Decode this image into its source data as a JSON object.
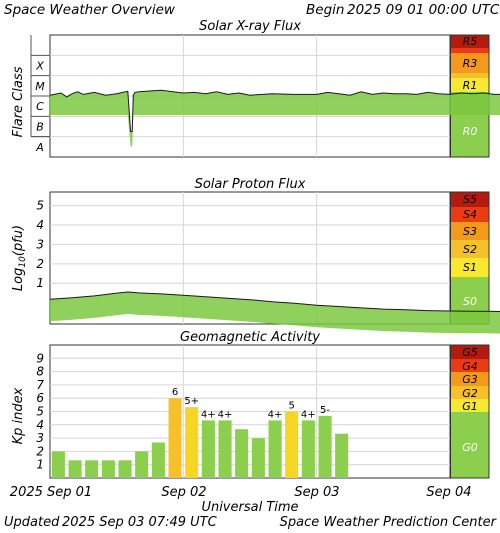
{
  "header": {
    "title": "Space Weather Overview",
    "begin_label": "Begin",
    "begin_time": "2025 09 01 00:00 UTC"
  },
  "footer": {
    "updated_label": "Updated",
    "updated_time": "2025 Sep 03 07:49 UTC",
    "credit": "Space Weather Prediction Center"
  },
  "colors": {
    "trace_fill": "#7cc840",
    "trace_line": "#1a1a1a",
    "grid": "#d6d6d6",
    "level_none": "#8ccf4c",
    "level1": "#f7e930",
    "level2": "#f5c02a",
    "level3": "#f39a1d",
    "level4": "#ea3b15",
    "level5": "#b41a0e",
    "kp_low": "#8ccf4c",
    "kp_active": "#f5d623",
    "kp_storm": "#f5c02a"
  },
  "chart_data": [
    {
      "type": "area",
      "title": "Solar X-ray Flux",
      "ylabel": "Flare Class",
      "x_range": [
        "2025-09-01 00:00",
        "2025-09-04 00:00"
      ],
      "x_ticks": [
        "2025 Sep 01",
        "Sep 02",
        "Sep 03",
        "Sep 04"
      ],
      "y_scale": "log",
      "y_unit": "W/m^2",
      "ylim": [
        1e-09,
        0.001
      ],
      "y_ticks": [
        "A",
        "B",
        "C",
        "M",
        "X"
      ],
      "scale_levels": [
        "R0",
        "R1",
        "R3",
        "R5"
      ],
      "series": [
        {
          "x_hours": [
            0,
            2,
            3,
            4,
            5,
            6,
            8,
            10,
            12,
            14,
            14.5,
            14.8,
            15,
            15.3,
            16,
            20,
            24,
            26,
            28,
            30,
            32,
            34,
            36,
            40,
            44,
            48,
            50,
            52,
            54,
            56,
            58,
            60,
            62,
            64,
            66,
            68,
            70,
            72,
            74,
            76,
            78,
            80,
            82,
            84,
            86,
            88,
            90,
            92,
            94,
            96,
            98,
            100,
            102,
            104,
            106,
            108,
            110,
            112,
            114,
            116,
            118,
            120
          ],
          "values": [
            1.1e-06,
            1.4e-06,
            9e-07,
            1.3e-06,
            1.6e-06,
            1.2e-06,
            1.5e-06,
            1.1e-06,
            1.3e-06,
            1.7e-06,
            1.8e-08,
            1.8e-08,
            1.1e-06,
            1.5e-06,
            1.6e-06,
            1.9e-06,
            1.4e-06,
            1.5e-06,
            1.3e-06,
            1.6e-06,
            1.2e-06,
            1.4e-06,
            1.1e-06,
            1.3e-06,
            1.2e-06,
            1.2e-06,
            1.5e-06,
            1.3e-06,
            1.1e-06,
            1.6e-06,
            1.2e-06,
            1.4e-06,
            1.3e-06,
            1.3e-06,
            1.2e-06,
            1.5e-06,
            1.3e-06,
            1.2e-06,
            1.4e-06,
            1.3e-06,
            1.4e-06,
            1.2e-06,
            1.2e-06,
            1.2e-06,
            1.3e-06,
            1.3e-06,
            1.5e-06,
            1.3e-06,
            1.2e-06,
            1.4e-06,
            1.1e-06,
            1.3e-06,
            1.5e-06,
            1.8e-06,
            1.4e-06,
            1.3e-06,
            1.3e-06,
            1.2e-06,
            1.4e-06,
            1.2e-06,
            1.3e-06,
            1.2e-06
          ]
        }
      ]
    },
    {
      "type": "area",
      "title": "Solar Proton Flux",
      "ylabel": "Log10(pfu)",
      "x_range": [
        "2025-09-01 00:00",
        "2025-09-04 00:00"
      ],
      "ylim": [
        -1.1,
        5.7
      ],
      "y_ticks": [
        1,
        2,
        3,
        4,
        5
      ],
      "scale_levels": [
        "S0",
        "S1",
        "S2",
        "S3",
        "S4",
        "S5"
      ],
      "series": [
        {
          "x_hours": [
            0,
            4,
            8,
            12,
            14,
            16,
            20,
            24,
            28,
            32,
            36,
            40,
            44,
            48,
            52,
            56,
            60,
            64,
            68,
            72,
            76,
            80,
            84,
            88,
            92,
            96,
            100,
            104,
            108,
            112,
            116,
            120
          ],
          "values": [
            0.18,
            0.25,
            0.35,
            0.49,
            0.55,
            0.5,
            0.45,
            0.38,
            0.3,
            0.23,
            0.15,
            0.05,
            -0.03,
            -0.13,
            -0.2,
            -0.27,
            -0.33,
            -0.37,
            -0.41,
            -0.43,
            -0.44,
            -0.45,
            -0.46,
            -0.47,
            -0.47,
            -0.48,
            -0.48,
            -0.49,
            -0.49,
            -0.49,
            -0.5,
            -0.5
          ]
        }
      ]
    },
    {
      "type": "bar",
      "title": "Geomagnetic Activity",
      "ylabel": "Kp index",
      "xlabel": "Universal Time",
      "ylim": [
        0,
        10
      ],
      "y_ticks": [
        1,
        2,
        3,
        4,
        5,
        6,
        7,
        8,
        9
      ],
      "scale_levels": [
        "G0",
        "G1",
        "G2",
        "G3",
        "G4",
        "G5"
      ],
      "categories": [
        "Sep 01 00",
        "Sep 01 03",
        "Sep 01 06",
        "Sep 01 09",
        "Sep 01 12",
        "Sep 01 15",
        "Sep 01 18",
        "Sep 01 21",
        "Sep 02 00",
        "Sep 02 03",
        "Sep 02 06",
        "Sep 02 09",
        "Sep 02 12",
        "Sep 02 15",
        "Sep 02 18",
        "Sep 02 21",
        "Sep 03 00",
        "Sep 03 03",
        "Sep 03 06"
      ],
      "values": [
        2.0,
        1.33,
        1.33,
        1.33,
        1.33,
        2.0,
        2.67,
        6.0,
        5.33,
        4.33,
        4.33,
        3.67,
        3.0,
        4.33,
        5.0,
        4.33,
        4.67,
        3.33,
        0
      ],
      "labels": [
        "",
        "",
        "",
        "",
        "",
        "",
        "",
        "6",
        "5+",
        "4+",
        "4+",
        "",
        "",
        "4+",
        "5",
        "4+",
        "5-",
        "",
        ""
      ]
    }
  ]
}
